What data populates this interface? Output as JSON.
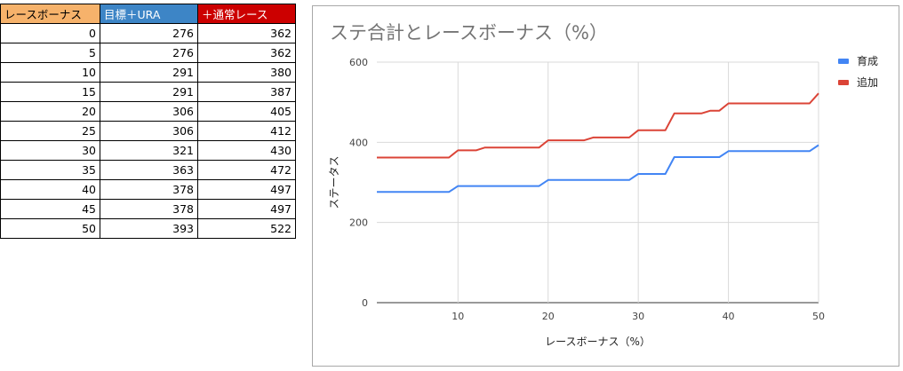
{
  "table": {
    "headers": [
      {
        "label": "レースボーナス",
        "bg": "#f6b26b",
        "color": "#000000"
      },
      {
        "label": "目標＋URA",
        "bg": "#3d85c6",
        "color": "#ffffff"
      },
      {
        "label": "＋通常レース",
        "bg": "#cc0000",
        "color": "#ffffff"
      }
    ],
    "rows": [
      [
        "0",
        "276",
        "362"
      ],
      [
        "5",
        "276",
        "362"
      ],
      [
        "10",
        "291",
        "380"
      ],
      [
        "15",
        "291",
        "387"
      ],
      [
        "20",
        "306",
        "405"
      ],
      [
        "25",
        "306",
        "412"
      ],
      [
        "30",
        "321",
        "430"
      ],
      [
        "35",
        "363",
        "472"
      ],
      [
        "40",
        "378",
        "497"
      ],
      [
        "45",
        "378",
        "497"
      ],
      [
        "50",
        "393",
        "522"
      ]
    ]
  },
  "chart_data": {
    "type": "line",
    "title": "ステ合計とレースボーナス（%）",
    "xlabel": "レースボーナス（%）",
    "ylabel": "ステータス",
    "xlim": [
      1,
      50
    ],
    "ylim": [
      0,
      600
    ],
    "x_ticks": [
      10,
      20,
      30,
      40,
      50
    ],
    "y_ticks": [
      0,
      200,
      400,
      600
    ],
    "grid": true,
    "legend_position": "right",
    "series": [
      {
        "name": "育成",
        "color": "#4285f4",
        "points": [
          [
            1,
            276
          ],
          [
            9,
            276
          ],
          [
            10,
            291
          ],
          [
            19,
            291
          ],
          [
            20,
            306
          ],
          [
            29,
            306
          ],
          [
            30,
            321
          ],
          [
            33,
            321
          ],
          [
            34,
            363
          ],
          [
            39,
            363
          ],
          [
            40,
            378
          ],
          [
            49,
            378
          ],
          [
            50,
            393
          ]
        ]
      },
      {
        "name": "追加",
        "color": "#db4437",
        "points": [
          [
            1,
            362
          ],
          [
            9,
            362
          ],
          [
            10,
            380
          ],
          [
            12,
            380
          ],
          [
            13,
            387
          ],
          [
            19,
            387
          ],
          [
            20,
            405
          ],
          [
            24,
            405
          ],
          [
            25,
            412
          ],
          [
            29,
            412
          ],
          [
            30,
            430
          ],
          [
            33,
            430
          ],
          [
            34,
            472
          ],
          [
            37,
            472
          ],
          [
            38,
            479
          ],
          [
            39,
            479
          ],
          [
            40,
            497
          ],
          [
            49,
            497
          ],
          [
            50,
            522
          ]
        ]
      }
    ]
  }
}
